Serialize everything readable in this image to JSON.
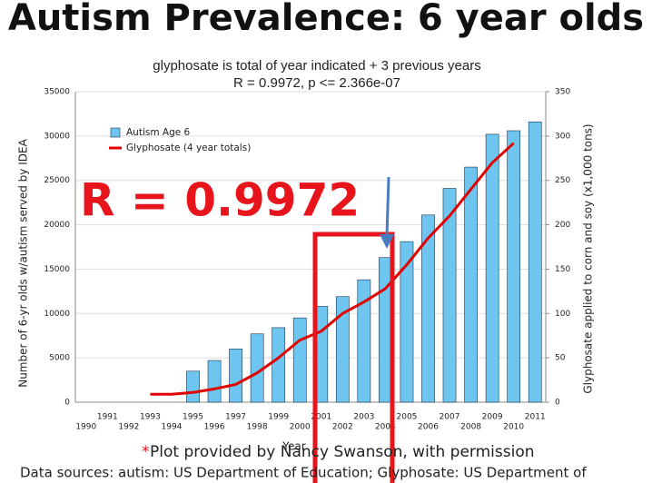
{
  "slide": {
    "title": "Autism Prevalence: 6 year olds",
    "footer_marker": "*",
    "footer_note": "Plot provided by Nancy Swanson, with permission",
    "footer_sources": "Data sources: autism: US Department of Education; Glyphosate: US Department of"
  },
  "chart_data": {
    "type": "bar",
    "title": "glyphosate is total of year indicated + 3 previous years",
    "subtitle": "R = 0.9972, p <= 2.366e-07",
    "annotation": "R = 0.9972",
    "x_label": "Year",
    "y_label": "Number of 6-yr olds w/autism served by IDEA",
    "y2_label": "Glyphosate applied to corn and soy (x1,000 tons)",
    "categories": [
      "1990",
      "1991",
      "1992",
      "1993",
      "1994",
      "1995",
      "1996",
      "1997",
      "1998",
      "1999",
      "2000",
      "2001",
      "2002",
      "2003",
      "2004",
      "2005",
      "2006",
      "2007",
      "2008",
      "2009",
      "2010",
      "2011"
    ],
    "series": [
      {
        "name": "Autism Age 6",
        "color": "#6ec6f0",
        "values": [
          null,
          null,
          null,
          null,
          null,
          3500,
          4700,
          6000,
          7700,
          8400,
          9500,
          10800,
          11900,
          13800,
          16300,
          18100,
          21100,
          24100,
          26500,
          30200,
          30600,
          31600
        ]
      },
      {
        "name": "Glyphosate (4 year totals)",
        "type": "line",
        "axis": "y2",
        "color": "#e00000",
        "values": [
          null,
          null,
          null,
          9,
          9,
          11,
          15,
          20,
          33,
          50,
          70,
          80,
          100,
          113,
          128,
          155,
          185,
          210,
          240,
          270,
          292,
          null
        ]
      }
    ],
    "ylim": [
      0,
      35000
    ],
    "yticks": [
      0,
      5000,
      10000,
      15000,
      20000,
      25000,
      30000,
      35000
    ],
    "y2lim": [
      0,
      350
    ],
    "y2ticks": [
      0,
      50,
      100,
      150,
      200,
      250,
      300,
      350
    ],
    "grid": true,
    "legend": "upper left"
  }
}
